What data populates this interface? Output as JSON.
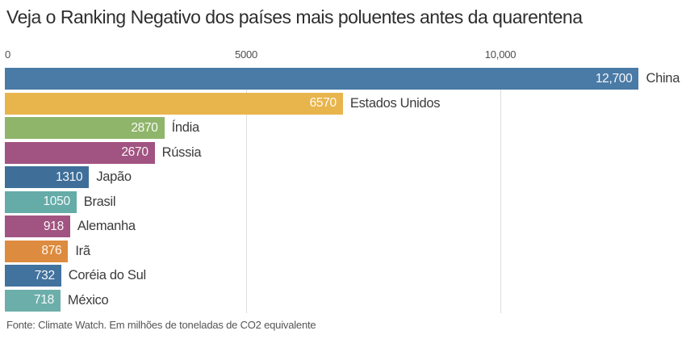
{
  "title": "Veja o Ranking Negativo dos países mais poluentes antes da quarentena",
  "source": "Fonte: Climate Watch. Em milhões de toneladas de CO2 equivalente",
  "chart_data": {
    "type": "bar",
    "orientation": "horizontal",
    "title": "Veja o Ranking Negativo dos países mais poluentes antes da quarentena",
    "categories": [
      "China",
      "Estados Unidos",
      "Índia",
      "Rússia",
      "Japão",
      "Brasil",
      "Alemanha",
      "Irã",
      "Coréia do Sul",
      "México"
    ],
    "values": [
      12700,
      6570,
      2870,
      2670,
      1310,
      1050,
      918,
      876,
      732,
      718
    ],
    "value_labels": [
      "12,700",
      "6570",
      "2870",
      "2670",
      "1310",
      "1050",
      "918",
      "876",
      "732",
      "718"
    ],
    "bar_colors": [
      "#4a7aa6",
      "#e8b54d",
      "#8fb56b",
      "#a15481",
      "#3f6f99",
      "#65aba8",
      "#a15481",
      "#dd8b3e",
      "#42729e",
      "#6caeaa"
    ],
    "unit": "milhões de toneladas de CO2 equivalente",
    "xlabel": "",
    "ylabel": "",
    "xlim": [
      0,
      13000
    ],
    "grid": true,
    "gridline_values": [
      5000,
      10000
    ],
    "x_axis": {
      "ticks": [
        "0",
        "5000",
        "10,000"
      ]
    },
    "legend": "none",
    "value_label_position": "inside-end",
    "category_label_position": "outside-end"
  }
}
